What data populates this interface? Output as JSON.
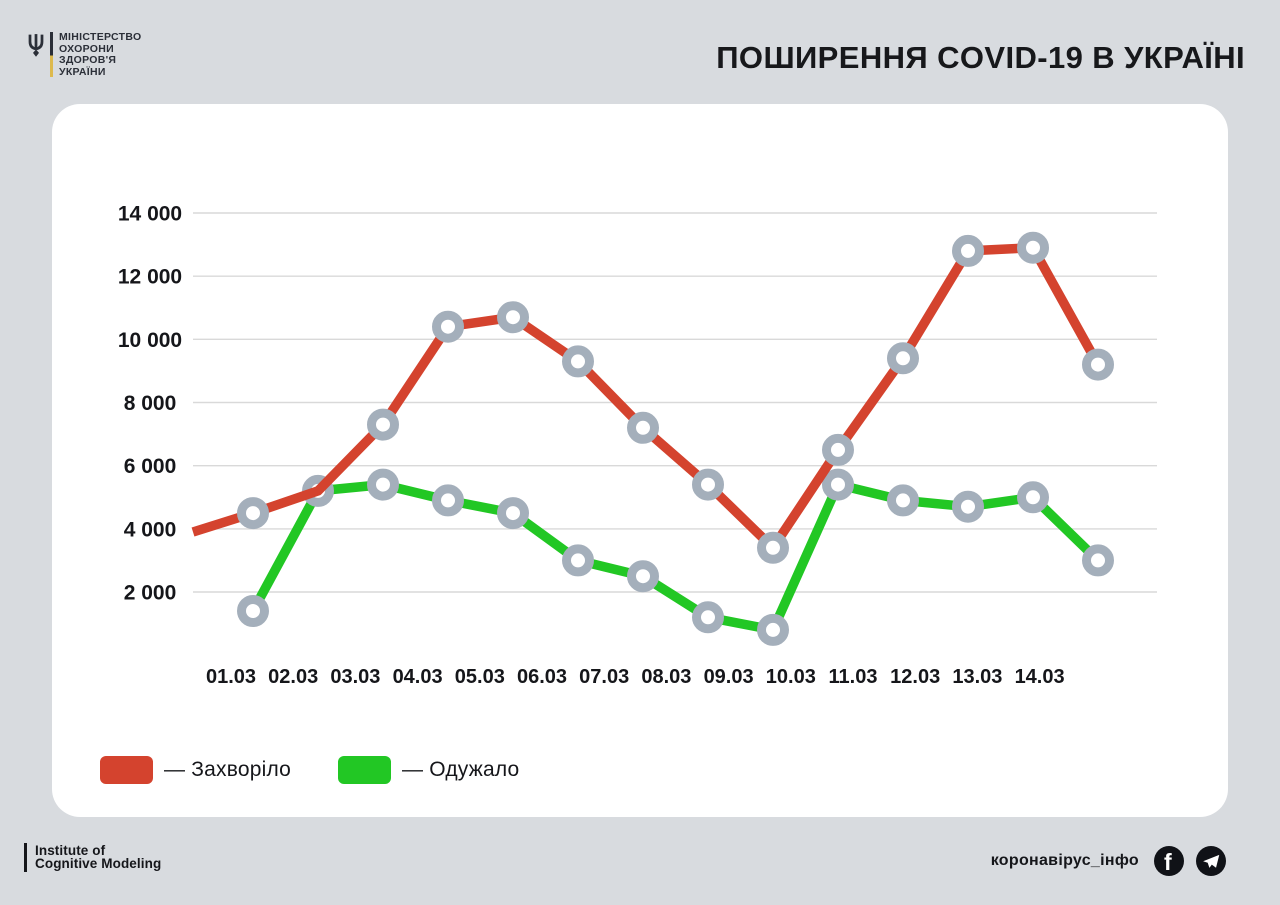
{
  "header": {
    "ministry_logo": {
      "lines": [
        "МІНІСТЕРСТВО",
        "ОХОРОНИ",
        "ЗДОРОВ'Я",
        "УКРАЇНИ"
      ]
    },
    "title": "ПОШИРЕННЯ COVID-19 В УКРАЇНІ"
  },
  "chart_data": {
    "type": "line",
    "title": "ПОШИРЕННЯ COVID-19 В УКРАЇНІ",
    "categories": [
      "01.03",
      "02.03",
      "03.03",
      "04.03",
      "05.03",
      "06.03",
      "07.03",
      "08.03",
      "09.03",
      "10.03",
      "11.03",
      "12.03",
      "13.03",
      "14.03"
    ],
    "series": [
      {
        "key": "infected",
        "name": "Захворіло",
        "color": "#d4432e",
        "leadin_value": 3900,
        "values": [
          4500,
          5200,
          7300,
          10400,
          10700,
          9300,
          7200,
          5400,
          3400,
          6500,
          9400,
          12800,
          12900,
          9200
        ]
      },
      {
        "key": "recovered",
        "name": "Одужало",
        "color": "#22c724",
        "values": [
          1400,
          5200,
          5400,
          4900,
          4500,
          3000,
          2500,
          1200,
          800,
          5400,
          4900,
          4700,
          5000,
          3000
        ]
      }
    ],
    "y_ticks": [
      "14 000",
      "12 000",
      "10 000",
      "8 000",
      "6 000",
      "4 000",
      "2 000"
    ],
    "y_tick_values": [
      14000,
      12000,
      10000,
      8000,
      6000,
      4000,
      2000
    ],
    "ylim": [
      0,
      14000
    ],
    "grid": "horizontal",
    "legend_position": "bottom-left",
    "legend": [
      {
        "label": "— Захворіло",
        "color": "#d4432e"
      },
      {
        "label": "— Одужало",
        "color": "#22c724"
      }
    ],
    "marker_style": {
      "shape": "ring",
      "ring_color": "#a4afbb",
      "fill": "#ffffff"
    }
  },
  "footer": {
    "credit_lines": [
      "Institute of",
      "Cognitive Modeling"
    ],
    "handle": "коронавірус_інфо",
    "social": [
      "facebook",
      "telegram"
    ]
  },
  "colors": {
    "background": "#d8dbdf",
    "card": "#ffffff",
    "text": "#15161a",
    "gridline": "#d9d9d9",
    "infected": "#d4432e",
    "recovered": "#22c724",
    "marker_ring": "#a4afbb",
    "logo_dark": "#2b2f38",
    "logo_yellow": "#ddb94d"
  }
}
